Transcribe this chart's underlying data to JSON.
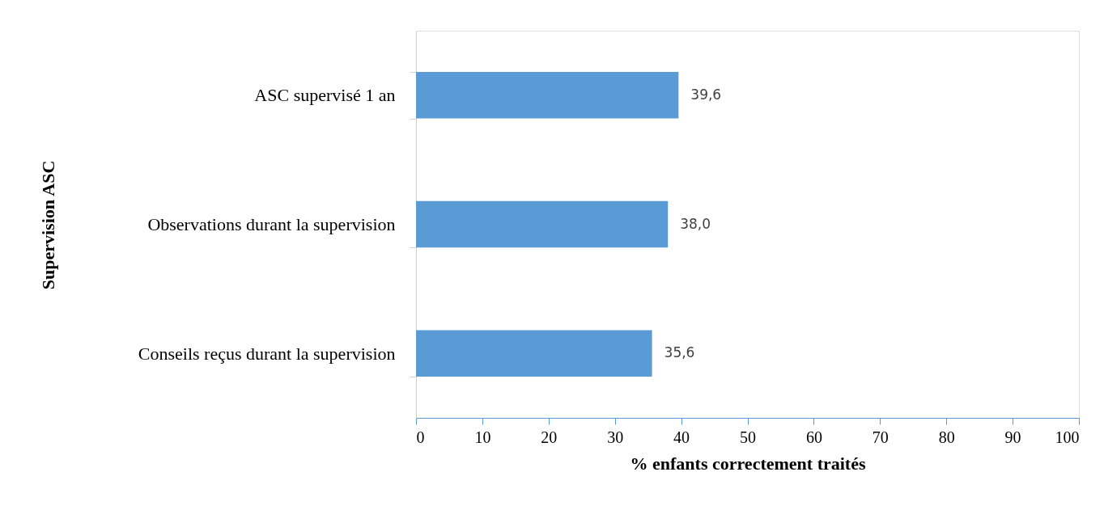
{
  "chart_data": {
    "type": "bar",
    "orientation": "horizontal",
    "xlabel": "% enfants correctement traités",
    "ylabel": "Supervision ASC",
    "categories": [
      "ASC  supervisé  1 an",
      "Observations durant la supervision",
      "Conseils reçus durant la supervision"
    ],
    "values": [
      39.6,
      38.0,
      35.6
    ],
    "value_labels": [
      "39,6",
      "38,0",
      "35,6"
    ],
    "color": "#5b9bd5",
    "xlim": [
      0,
      100
    ],
    "xticks": [
      0,
      10,
      20,
      30,
      40,
      50,
      60,
      70,
      80,
      90,
      100
    ],
    "grid": false
  }
}
